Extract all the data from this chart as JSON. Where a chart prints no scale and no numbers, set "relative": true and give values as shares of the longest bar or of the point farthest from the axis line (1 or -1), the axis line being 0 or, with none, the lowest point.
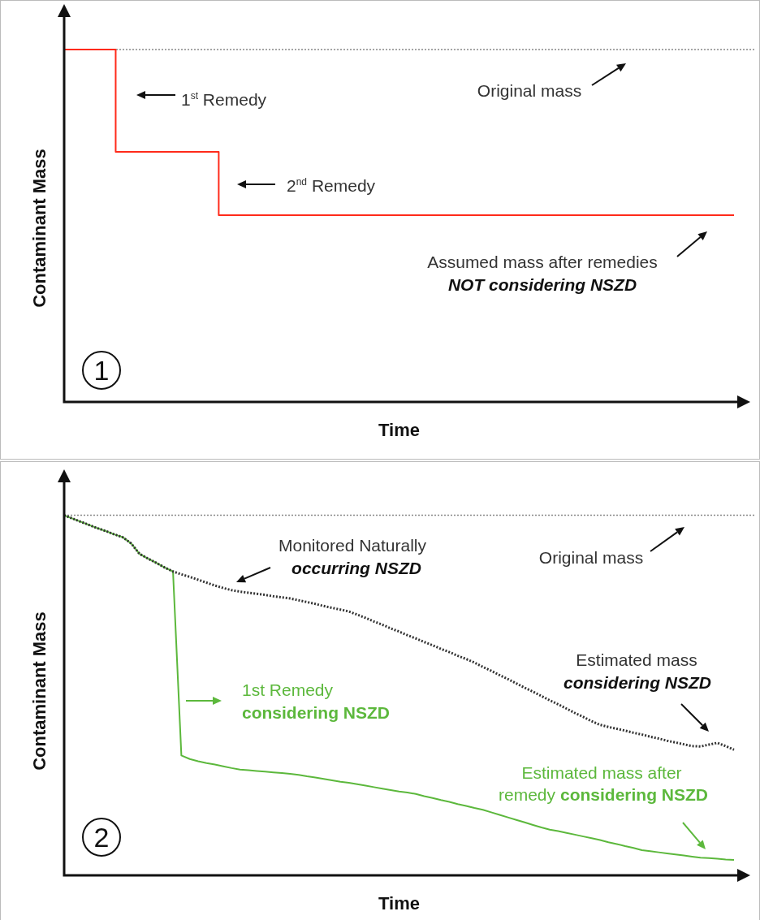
{
  "chart_data": [
    {
      "type": "step",
      "xlabel": "Time",
      "ylabel": "Contaminant Mass",
      "relative": true,
      "categories": [
        null,
        null,
        null,
        null,
        null,
        null,
        null,
        null,
        null,
        null,
        null,
        null,
        null,
        null
      ],
      "series": [
        {
          "color": "#ff2a1a",
          "values": [
            1,
            0.71,
            0.71,
            0.53,
            0.53,
            0.53,
            0.53,
            0.53,
            0.53,
            0.53,
            0.53,
            0.53,
            0.53,
            0.53
          ]
        }
      ],
      "ref_lines": [
        {
          "axis": "y",
          "value": 1,
          "color": "#888888",
          "line_style": "dotted"
        }
      ],
      "annotations": [
        "1$^{st}$ Remedy",
        "2$^{nd}$ Remedy",
        "Original mass",
        "Assumed mass after remedies",
        "NOT considering NSZD",
        "1"
      ]
    },
    {
      "type": "line",
      "xlabel": "Time",
      "ylabel": "Contaminant Mass",
      "relative": true,
      "categories": [
        null,
        null,
        null,
        null,
        null,
        null,
        null,
        null,
        null,
        null,
        null,
        null,
        null,
        null,
        null,
        null,
        null,
        null,
        null,
        null,
        null,
        null,
        null,
        null,
        null,
        null,
        null,
        null,
        null,
        null,
        null,
        null,
        null,
        null,
        null,
        null,
        null,
        null,
        null,
        null,
        null,
        null,
        null,
        null,
        null,
        null,
        null,
        null,
        null,
        null,
        null,
        null,
        null,
        null,
        null,
        null,
        null,
        null,
        null,
        null,
        null,
        null,
        null,
        null,
        null,
        null,
        null,
        null,
        null,
        null,
        null,
        null,
        null,
        null,
        null,
        null,
        null,
        null,
        null,
        null,
        null
      ],
      "series": [
        {
          "color": "#333333",
          "line_style": "dotted",
          "values": [
            1,
            0.991,
            0.982,
            0.973,
            0.964,
            0.956,
            0.947,
            0.939,
            0.922,
            0.893,
            0.88,
            0.868,
            0.855,
            0.844,
            0.836,
            0.829,
            0.821,
            0.813,
            0.805,
            0.798,
            0.792,
            0.788,
            0.785,
            0.782,
            0.779,
            0.775,
            0.772,
            0.769,
            0.764,
            0.759,
            0.754,
            0.748,
            0.743,
            0.738,
            0.733,
            0.724,
            0.715,
            0.705,
            0.696,
            0.686,
            0.677,
            0.667,
            0.658,
            0.648,
            0.639,
            0.629,
            0.62,
            0.61,
            0.601,
            0.591,
            0.579,
            0.568,
            0.556,
            0.545,
            0.533,
            0.521,
            0.51,
            0.498,
            0.486,
            0.475,
            0.463,
            0.451,
            0.44,
            0.428,
            0.418,
            0.412,
            0.407,
            0.402,
            0.396,
            0.391,
            0.385,
            0.38,
            0.374,
            0.369,
            0.364,
            0.359,
            0.358,
            0.363,
            0.368,
            0.359,
            0.349
          ]
        },
        {
          "color": "#5cb83c",
          "values": [
            1,
            0.991,
            0.982,
            0.973,
            0.964,
            0.956,
            0.947,
            0.939,
            0.922,
            0.893,
            0.88,
            0.868,
            0.855,
            0.844,
            0.333,
            0.323,
            0.317,
            0.312,
            0.308,
            0.303,
            0.298,
            0.294,
            0.292,
            0.29,
            0.288,
            0.286,
            0.284,
            0.282,
            0.279,
            0.275,
            0.272,
            0.268,
            0.264,
            0.26,
            0.257,
            0.253,
            0.249,
            0.245,
            0.241,
            0.237,
            0.233,
            0.23,
            0.226,
            0.22,
            0.215,
            0.209,
            0.204,
            0.198,
            0.193,
            0.187,
            0.182,
            0.175,
            0.168,
            0.161,
            0.154,
            0.147,
            0.14,
            0.133,
            0.127,
            0.123,
            0.118,
            0.113,
            0.108,
            0.103,
            0.098,
            0.092,
            0.087,
            0.081,
            0.076,
            0.07,
            0.067,
            0.064,
            0.061,
            0.058,
            0.055,
            0.052,
            0.049,
            0.048,
            0.046,
            0.044,
            0.043
          ]
        }
      ],
      "ref_lines": [
        {
          "axis": "y",
          "value": 1,
          "color": "#888888",
          "line_style": "dotted"
        }
      ],
      "annotations": [
        "Monitored Naturally",
        "occurring NSZD",
        "Original mass",
        "Estimated mass",
        "considering NSZD",
        "1st Remedy",
        "considering NSZD",
        "Estimated mass after",
        "remedy",
        "considering NSZD",
        "2"
      ]
    }
  ]
}
